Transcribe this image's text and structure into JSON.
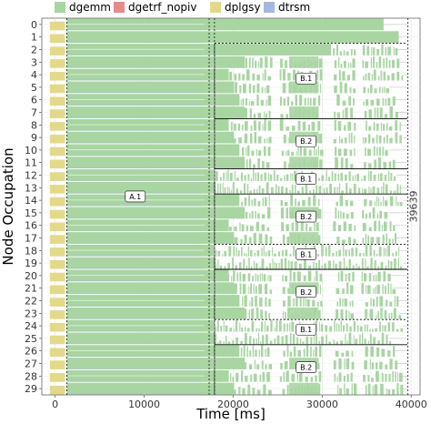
{
  "chart_data": {
    "type": "gantt",
    "xlabel": "Time [ms]",
    "ylabel": "Node Occupation",
    "xlim": [
      -1500,
      41000
    ],
    "x_ticks": [
      0,
      10000,
      20000,
      30000,
      40000
    ],
    "y_ticks": [
      0,
      1,
      2,
      3,
      4,
      5,
      6,
      7,
      8,
      9,
      10,
      11,
      12,
      13,
      14,
      15,
      16,
      17,
      18,
      19,
      20,
      21,
      22,
      23,
      24,
      25,
      26,
      27,
      28,
      29
    ],
    "legend_position": "top",
    "grid": true,
    "series": [
      {
        "name": "dgemm",
        "color": "#a8d5a2"
      },
      {
        "name": "dgetrf_nopiv",
        "color": "#e88a8a"
      },
      {
        "name": "dplgsy",
        "color": "#e3d98a"
      },
      {
        "name": "dtrsm",
        "color": "#a3b8df"
      }
    ],
    "vertical_lines": [
      {
        "x": 1300,
        "style": "dashed"
      },
      {
        "x": 17300,
        "style": "dashed"
      },
      {
        "x": 17900,
        "style": "dashed"
      }
    ],
    "makespan_label": "39639",
    "makespan": 39639,
    "phases": [
      {
        "label": "A.1",
        "x": 9000,
        "y": 14.2
      },
      {
        "label": "B.1",
        "x": 28200,
        "y": 4.8
      },
      {
        "label": "B.2",
        "x": 28200,
        "y": 9.8
      },
      {
        "label": "B.1",
        "x": 28200,
        "y": 12.8
      },
      {
        "label": "B.2",
        "x": 28200,
        "y": 15.8
      },
      {
        "label": "B.1",
        "x": 28200,
        "y": 18.8
      },
      {
        "label": "B.2",
        "x": 28200,
        "y": 21.8
      },
      {
        "label": "B.1",
        "x": 28200,
        "y": 24.8
      },
      {
        "label": "B.2",
        "x": 28200,
        "y": 27.8
      }
    ],
    "groups": [
      {
        "y0": 2,
        "y1": 7,
        "solid_top": false
      },
      {
        "y0": 8,
        "y1": 11,
        "solid_top": true
      },
      {
        "y0": 12,
        "y1": 13,
        "solid_top": true
      },
      {
        "y0": 14,
        "y1": 17,
        "solid_top": true
      },
      {
        "y0": 18,
        "y1": 19,
        "solid_top": false
      },
      {
        "y0": 20,
        "y1": 23,
        "solid_top": true
      },
      {
        "y0": 24,
        "y1": 25,
        "solid_top": false
      },
      {
        "y0": 26,
        "y1": 29,
        "solid_top": true
      }
    ]
  }
}
